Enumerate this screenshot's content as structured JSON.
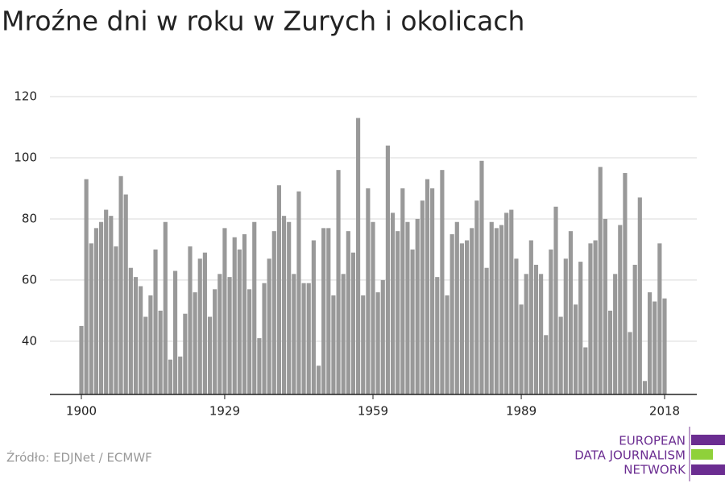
{
  "chart_data": {
    "type": "bar",
    "title": "Mroźne dni w roku w Zurych i okolicach",
    "source": "Źródło: EDJNet / ECMWF",
    "logo": [
      "EUROPEAN",
      "DATA JOURNALISM",
      "NETWORK"
    ],
    "color": "#999999",
    "grid": true,
    "x": [
      1900,
      1901,
      1902,
      1903,
      1904,
      1905,
      1906,
      1907,
      1908,
      1909,
      1910,
      1911,
      1912,
      1913,
      1914,
      1915,
      1916,
      1917,
      1918,
      1919,
      1920,
      1921,
      1922,
      1923,
      1924,
      1925,
      1926,
      1927,
      1928,
      1929,
      1930,
      1931,
      1932,
      1933,
      1934,
      1935,
      1936,
      1937,
      1938,
      1939,
      1940,
      1941,
      1942,
      1943,
      1944,
      1945,
      1946,
      1947,
      1948,
      1949,
      1950,
      1951,
      1952,
      1953,
      1954,
      1955,
      1956,
      1957,
      1958,
      1959,
      1960,
      1961,
      1962,
      1963,
      1964,
      1965,
      1966,
      1967,
      1968,
      1969,
      1970,
      1971,
      1972,
      1973,
      1974,
      1975,
      1976,
      1977,
      1978,
      1979,
      1980,
      1981,
      1982,
      1983,
      1984,
      1985,
      1986,
      1987,
      1988,
      1989,
      1990,
      1991,
      1992,
      1993,
      1994,
      1995,
      1996,
      1997,
      1998,
      1999,
      2000,
      2001,
      2002,
      2003,
      2004,
      2005,
      2006,
      2007,
      2008,
      2009,
      2010,
      2011,
      2012,
      2013,
      2014,
      2015,
      2016,
      2017,
      2018
    ],
    "values": [
      45,
      93,
      72,
      77,
      79,
      83,
      81,
      71,
      94,
      88,
      64,
      61,
      58,
      48,
      55,
      70,
      50,
      79,
      34,
      63,
      35,
      49,
      71,
      56,
      67,
      69,
      48,
      57,
      62,
      77,
      61,
      74,
      70,
      75,
      57,
      79,
      41,
      59,
      67,
      76,
      91,
      81,
      79,
      62,
      89,
      59,
      59,
      73,
      32,
      77,
      77,
      55,
      96,
      62,
      76,
      69,
      113,
      55,
      90,
      79,
      56,
      60,
      104,
      82,
      76,
      90,
      79,
      70,
      80,
      86,
      93,
      90,
      61,
      96,
      55,
      75,
      79,
      72,
      73,
      77,
      86,
      99,
      64,
      79,
      77,
      78,
      82,
      83,
      67,
      52,
      62,
      73,
      65,
      62,
      42,
      70,
      84,
      48,
      67,
      76,
      52,
      66,
      38,
      72,
      73,
      97,
      80,
      50,
      62,
      78,
      95,
      43,
      65,
      87,
      27,
      56,
      53,
      72,
      54
    ],
    "xlim": [
      1900,
      2018
    ],
    "xticks": [
      1900,
      1929,
      1959,
      1989,
      2018
    ],
    "ylim": [
      22.6,
      120
    ],
    "yticks": [
      40,
      60,
      80,
      100,
      120
    ]
  }
}
